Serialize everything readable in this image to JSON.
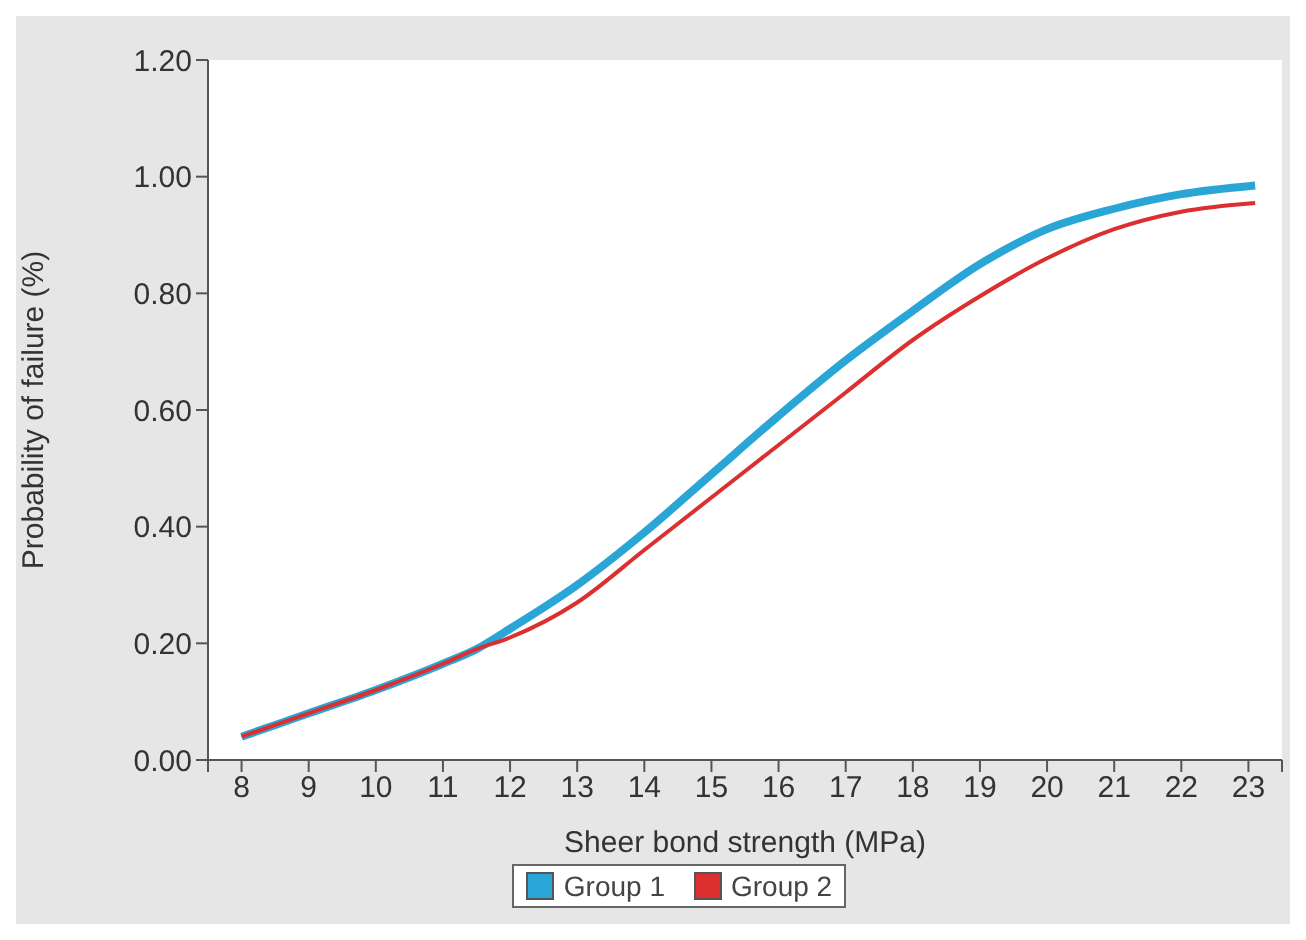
{
  "chart_data": {
    "type": "line",
    "xlabel": "Sheer bond strength (MPa)",
    "ylabel": "Probability of failure (%)",
    "xlim": [
      7.5,
      23.5
    ],
    "xticks": [
      {
        "value": 7.5,
        "label": null
      },
      8,
      9,
      10,
      11,
      12,
      13,
      14,
      15,
      16,
      17,
      18,
      19,
      20,
      21,
      22,
      23,
      {
        "value": 23.5,
        "label": null
      }
    ],
    "ylim": [
      0,
      1.2
    ],
    "yticks": [
      {
        "value": 0,
        "label": "0.00"
      },
      {
        "value": 0.2,
        "label": "0.20"
      },
      {
        "value": 0.4,
        "label": "0.40"
      },
      {
        "value": 0.6,
        "label": "0.60"
      },
      {
        "value": 0.8,
        "label": "0.80"
      },
      {
        "value": 1,
        "label": "1.00"
      },
      {
        "value": 1.2,
        "label": "1.20"
      }
    ],
    "grid": false,
    "legend": "bottom",
    "marker": "none",
    "line_style": "solid",
    "x": [
      8,
      9,
      10,
      11,
      11.5,
      12,
      13,
      14,
      15,
      16,
      17,
      18,
      19,
      20,
      21,
      22,
      23.1
    ],
    "series": [
      {
        "name": "Group 1",
        "color": "#2aa6d6",
        "values": [
          0.04,
          0.08,
          0.12,
          0.165,
          0.19,
          0.225,
          0.3,
          0.39,
          0.49,
          0.59,
          0.685,
          0.77,
          0.85,
          0.91,
          0.945,
          0.97,
          0.985
        ]
      },
      {
        "name": "Group 2",
        "color": "#dc2f2f",
        "values": [
          0.04,
          0.08,
          0.12,
          0.165,
          0.19,
          0.21,
          0.27,
          0.36,
          0.45,
          0.54,
          0.63,
          0.72,
          0.795,
          0.86,
          0.91,
          0.94,
          0.955
        ]
      }
    ]
  }
}
